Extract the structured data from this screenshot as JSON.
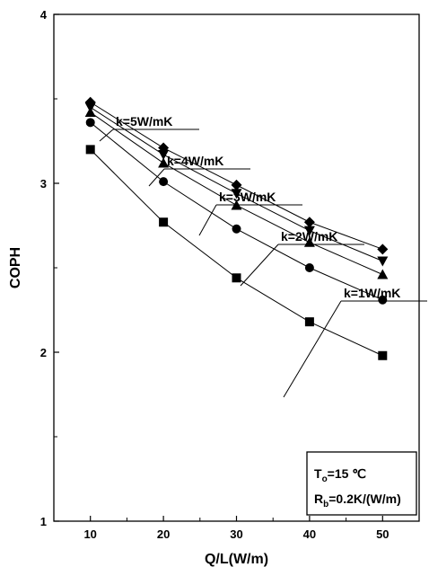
{
  "chart_data": {
    "type": "line",
    "title": "",
    "xlabel": "Q/L(W/m)",
    "ylabel": "COPH",
    "xlim": [
      5,
      55
    ],
    "ylim": [
      1,
      4
    ],
    "x_ticks": [
      "10",
      "20",
      "30",
      "40",
      "50"
    ],
    "y_ticks": [
      "1",
      "2",
      "3",
      "4"
    ],
    "grid": false,
    "x": [
      10,
      20,
      30,
      40,
      50
    ],
    "series": [
      {
        "name": "k=5W/mK",
        "marker": "diamond",
        "values": [
          3.48,
          3.21,
          2.99,
          2.77,
          2.61
        ]
      },
      {
        "name": "k=4W/mK",
        "marker": "triangle-down",
        "values": [
          3.45,
          3.17,
          2.94,
          2.72,
          2.54
        ]
      },
      {
        "name": "k=3W/mK",
        "marker": "triangle-up",
        "values": [
          3.42,
          3.12,
          2.87,
          2.65,
          2.46
        ]
      },
      {
        "name": "k=2W/mK",
        "marker": "circle",
        "values": [
          3.36,
          3.01,
          2.73,
          2.5,
          2.31
        ]
      },
      {
        "name": "k=1W/mK",
        "marker": "square",
        "values": [
          3.2,
          2.77,
          2.44,
          2.18,
          1.98
        ]
      }
    ],
    "info_box": {
      "line1_main": "T",
      "line1_sub": "o",
      "line1_rest": "=15 ℃",
      "line2_main": "R",
      "line2_sub": "b",
      "line2_rest": "=0.2K/(W/m)"
    }
  }
}
